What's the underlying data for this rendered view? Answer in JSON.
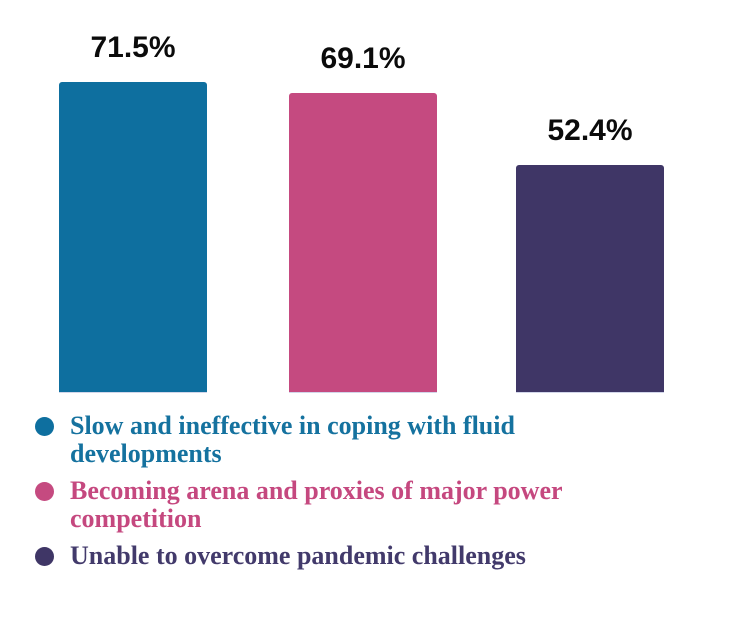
{
  "chart_data": {
    "type": "bar",
    "categories": [
      "Slow and ineffective in coping with fluid developments",
      "Becoming arena and proxies of major power competition",
      "Unable to overcome pandemic challenges"
    ],
    "values": [
      71.5,
      69.1,
      52.4
    ],
    "value_labels": [
      "71.5%",
      "69.1%",
      "52.4%"
    ],
    "colors": [
      "#0e6f9f",
      "#c54a80",
      "#3f3666"
    ],
    "title": "",
    "xlabel": "",
    "ylabel": "",
    "ylim": [
      0,
      90
    ],
    "grid": false,
    "legend_position": "bottom"
  },
  "legend": {
    "items": [
      {
        "label": "Slow and ineffective in coping with fluid developments",
        "color": "#0e6f9f",
        "text_color": "#15729f"
      },
      {
        "label": "Becoming arena and proxies of major power competition",
        "color": "#c54a80",
        "text_color": "#c5487f"
      },
      {
        "label": "Unable to overcome pandemic challenges",
        "color": "#3f3666",
        "text_color": "#423a6b"
      }
    ]
  }
}
